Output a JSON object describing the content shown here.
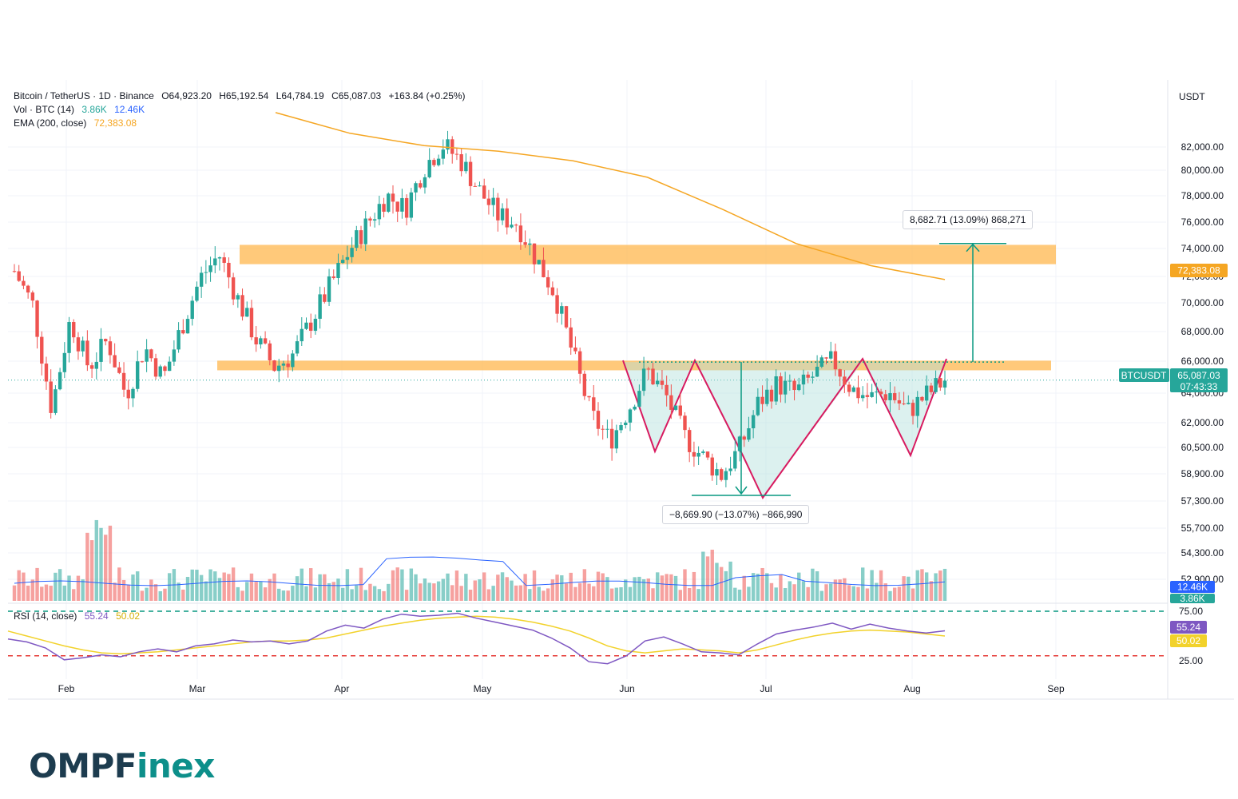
{
  "legend": {
    "symbol": "Bitcoin / TetherUS · 1D · Binance",
    "open": "O64,923.20",
    "high": "H65,192.54",
    "low": "L64,784.19",
    "close": "C65,087.03",
    "change": "+163.84 (+0.25%)",
    "vol_label": "Vol · BTC (14)",
    "vol_value": "3.86K",
    "vol_ma": "12.46K",
    "ema_label": "EMA (200, close)",
    "ema_value": "72,383.08",
    "rsi_label": "RSI (14, close)",
    "rsi_value": "55.24",
    "rsi_ma": "50.02"
  },
  "currency": "USDT",
  "annotations": {
    "up_target": "8,682.71 (13.09%) 868,271",
    "down_measure": "−8,669.90 (−13.07%) −866,990"
  },
  "tags": {
    "ema": "72,383.08",
    "symbol": "BTCUSDT",
    "price": "65,087.03",
    "countdown": "07:43:33",
    "vol_ma": "12.46K",
    "vol": "3.86K",
    "rsi": "55.24",
    "rsi_ma": "50.02"
  },
  "logo": {
    "part1": "OMPF",
    "part2": "inex"
  },
  "colors": {
    "up": "#26a69a",
    "down": "#ef5350",
    "ema": "#f5a623",
    "zone": "#ffb74d",
    "rsi": "#7e57c2",
    "rsi_ma": "#f2d22b",
    "pattern": "#d81b60",
    "measure": "#089981"
  },
  "chart_data": {
    "type": "candlestick",
    "y_ticks": [
      "82,000.00",
      "80,000.00",
      "78,000.00",
      "76,000.00",
      "74,000.00",
      "72,000.00",
      "70,000.00",
      "68,000.00",
      "66,000.00",
      "64,000.00",
      "62,000.00",
      "60,500.00",
      "58,900.00",
      "57,300.00",
      "55,700.00",
      "54,300.00",
      "52,900.00"
    ],
    "x_ticks": [
      "Feb",
      "Mar",
      "Apr",
      "May",
      "Jun",
      "Jul",
      "Aug",
      "Sep"
    ],
    "rsi_ticks": [
      "75.00",
      "25.00"
    ],
    "resistance_zones": [
      [
        73500,
        74900
      ],
      [
        65800,
        66500
      ]
    ],
    "neckline": 66400,
    "last_price": 65087.03,
    "ema200": [
      84500,
      83000,
      82100,
      81700,
      81000,
      79800,
      77500,
      75000,
      73400,
      72383
    ],
    "close_path": [
      73000,
      70500,
      63000,
      69500,
      66000,
      68000,
      64000,
      67500,
      65200,
      69000,
      72500,
      74200,
      71000,
      68000,
      66000,
      67000,
      69500,
      72000,
      74500,
      76500,
      78500,
      77500,
      80500,
      82200,
      81000,
      78800,
      77000,
      76500,
      74000,
      71500,
      67000,
      62500,
      60700,
      63000,
      65800,
      64000,
      61000,
      59500,
      58200,
      60200,
      63500,
      64800,
      64200,
      65500,
      66500,
      64400,
      63800,
      64200,
      62800,
      64000,
      65087
    ],
    "rsi_path": [
      47,
      44,
      38,
      26,
      28,
      31,
      29,
      34,
      37,
      34,
      40,
      42,
      46,
      44,
      45,
      42,
      45,
      55,
      61,
      58,
      67,
      72,
      70,
      71,
      73,
      68,
      64,
      60,
      56,
      48,
      38,
      24,
      22,
      30,
      45,
      49,
      42,
      34,
      33,
      31,
      42,
      52,
      56,
      59,
      63,
      57,
      62,
      58,
      55,
      53,
      55.24
    ],
    "rsi_ma_path": [
      55,
      50,
      45,
      40,
      36,
      33,
      32,
      33,
      34,
      36,
      38,
      40,
      42,
      44,
      45,
      45,
      46,
      48,
      52,
      56,
      60,
      63,
      66,
      68,
      69,
      70,
      69,
      67,
      64,
      60,
      55,
      48,
      40,
      35,
      33,
      35,
      37,
      36,
      35,
      33,
      36,
      41,
      46,
      50,
      53,
      55,
      56,
      55,
      54,
      52,
      50.02
    ]
  }
}
